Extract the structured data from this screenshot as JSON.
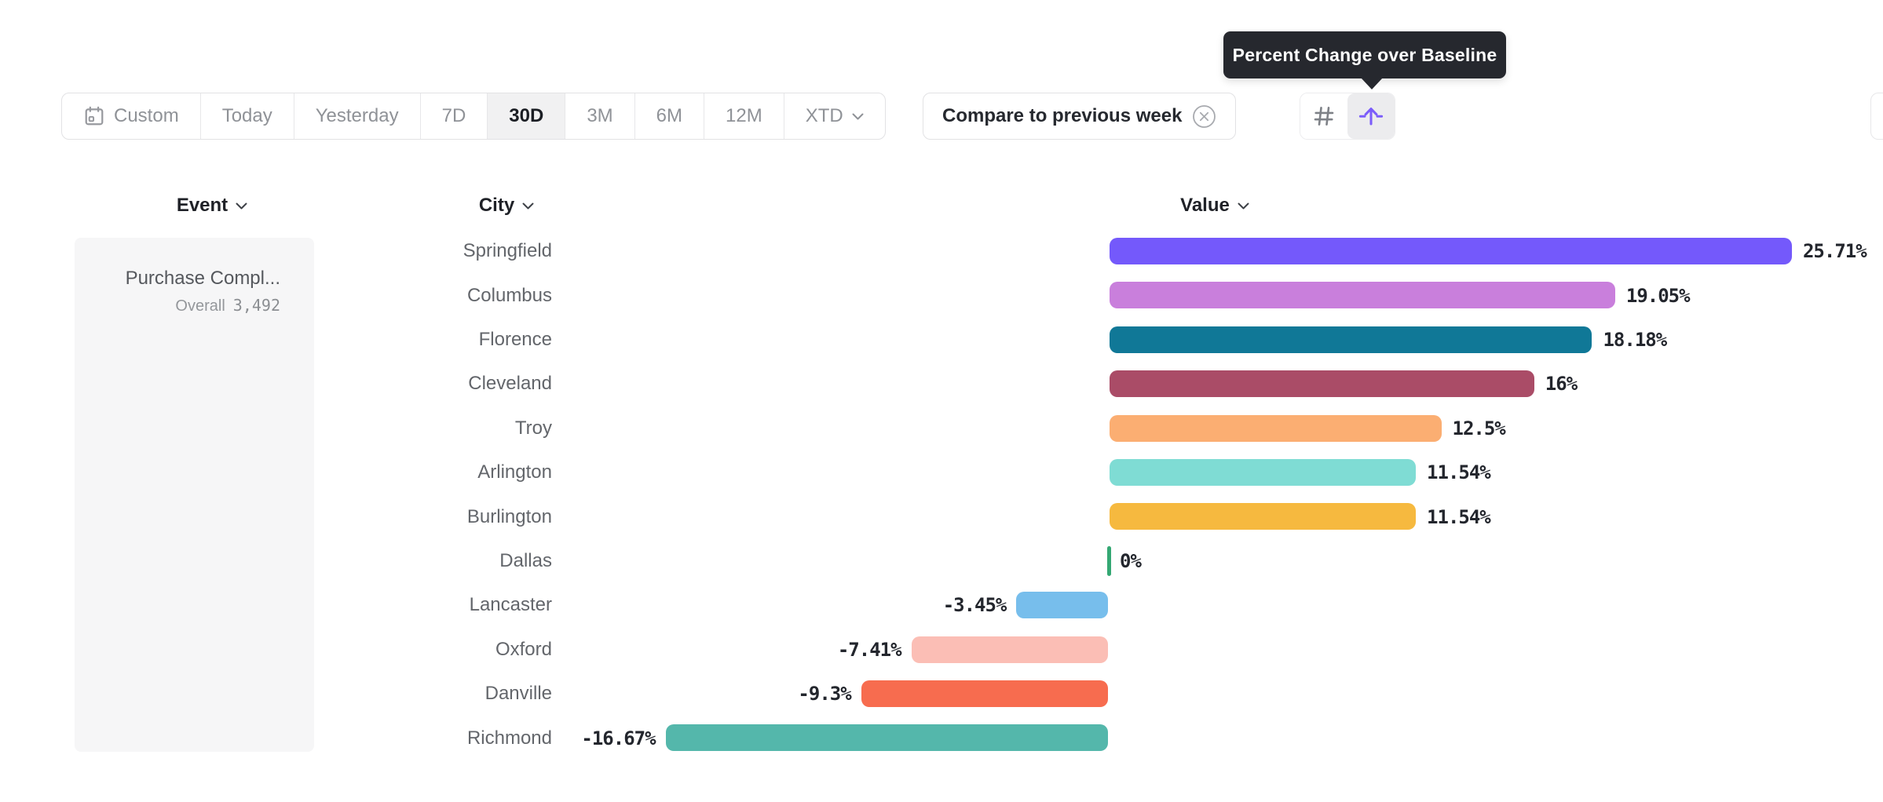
{
  "tooltip": {
    "text": "Percent Change over Baseline"
  },
  "toolbar": {
    "date_ranges": [
      {
        "label": "Custom",
        "icon": "calendar-icon",
        "selected": false
      },
      {
        "label": "Today",
        "selected": false
      },
      {
        "label": "Yesterday",
        "selected": false
      },
      {
        "label": "7D",
        "selected": false
      },
      {
        "label": "30D",
        "selected": true
      },
      {
        "label": "3M",
        "selected": false
      },
      {
        "label": "6M",
        "selected": false
      },
      {
        "label": "12M",
        "selected": false
      },
      {
        "label": "XTD",
        "selected": false,
        "dropdown_icon": "chevron-down-icon"
      }
    ],
    "compare": {
      "label": "Compare to previous week",
      "dismiss_icon": "circle-x-icon"
    },
    "view_toggle": [
      {
        "icon": "hash-icon",
        "name": "absolute-values",
        "selected": false
      },
      {
        "icon": "percent-change-arrow-icon",
        "name": "percent-change",
        "selected": true
      }
    ]
  },
  "columns": {
    "event": "Event",
    "city": "City",
    "value": "Value"
  },
  "event_card": {
    "title": "Purchase Compl...",
    "overall_label": "Overall",
    "overall_value": "3,492"
  },
  "chart_data": {
    "type": "bar",
    "orientation": "horizontal",
    "value_unit": "percent change over baseline",
    "zero_tick_color": "#34A873",
    "rows": [
      {
        "city": "Springfield",
        "value": 25.71,
        "label": "25.71%",
        "color": "#7459FB"
      },
      {
        "city": "Columbus",
        "value": 19.05,
        "label": "19.05%",
        "color": "#C97FDC"
      },
      {
        "city": "Florence",
        "value": 18.18,
        "label": "18.18%",
        "color": "#107897"
      },
      {
        "city": "Cleveland",
        "value": 16,
        "label": "16%",
        "color": "#AA4C67"
      },
      {
        "city": "Troy",
        "value": 12.5,
        "label": "12.5%",
        "color": "#FBAE72"
      },
      {
        "city": "Arlington",
        "value": 11.54,
        "label": "11.54%",
        "color": "#7FDCD4"
      },
      {
        "city": "Burlington",
        "value": 11.54,
        "label": "11.54%",
        "color": "#F6B93F"
      },
      {
        "city": "Dallas",
        "value": 0,
        "label": "0%",
        "color": "#34A873"
      },
      {
        "city": "Lancaster",
        "value": -3.45,
        "label": "-3.45%",
        "color": "#77BEEC"
      },
      {
        "city": "Oxford",
        "value": -7.41,
        "label": "-7.41%",
        "color": "#FBBEB5"
      },
      {
        "city": "Danville",
        "value": -9.3,
        "label": "-9.3%",
        "color": "#F76C4F"
      },
      {
        "city": "Richmond",
        "value": -16.67,
        "label": "-16.67%",
        "color": "#54B7AB"
      }
    ]
  }
}
